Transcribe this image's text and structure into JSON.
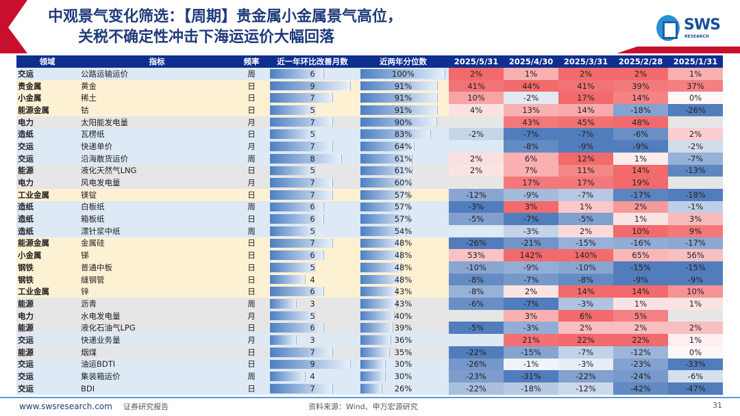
{
  "header": {
    "title_line1": "中观景气变化筛选：【周期】贵金属小金属景气高位，",
    "title_line2": "关税不确定性冲击下海运运价大幅回落",
    "logo_text": "SWS",
    "logo_sub": "RESEARCH"
  },
  "colors": {
    "header_bg": "#0e2f8f",
    "accent_red": "#c8102e",
    "row_blue": "#dde9f5",
    "row_yellow": "#fdf1d4",
    "row_gray": "#e6e6e6",
    "heat_pos": "#f0595b",
    "heat_neg": "#3f6fb5"
  },
  "table": {
    "columns": [
      "领域",
      "指标",
      "频率",
      "近一年环比改善月数",
      "近两年分位数",
      "2025/5/31",
      "2025/4/30",
      "2025/3/31",
      "2025/2/28",
      "2025/1/31"
    ],
    "rows": [
      {
        "domain": "交运",
        "indicator": "公路运输运价",
        "freq": "周",
        "months": 6,
        "pct": "100%",
        "group": "blue",
        "vals": [
          "2%",
          "1%",
          "2%",
          "2%",
          "1%"
        ]
      },
      {
        "domain": "贵金属",
        "indicator": "黄金",
        "freq": "日",
        "months": 9,
        "pct": "91%",
        "group": "yellow",
        "vals": [
          "41%",
          "44%",
          "41%",
          "39%",
          "37%"
        ]
      },
      {
        "domain": "小金属",
        "indicator": "稀土",
        "freq": "日",
        "months": 7,
        "pct": "91%",
        "group": "yellow",
        "vals": [
          "10%",
          "-2%",
          "17%",
          "14%",
          "0%"
        ]
      },
      {
        "domain": "能源金属",
        "indicator": "钴",
        "freq": "日",
        "months": 5,
        "pct": "91%",
        "group": "yellow",
        "vals": [
          "4%",
          "13%",
          "14%",
          "-18%",
          "-26%"
        ]
      },
      {
        "domain": "电力",
        "indicator": "太阳能发电量",
        "freq": "月",
        "months": 7,
        "pct": "90%",
        "group": "gray",
        "vals": [
          "",
          "43%",
          "45%",
          "48%",
          ""
        ]
      },
      {
        "domain": "造纸",
        "indicator": "瓦楞纸",
        "freq": "日",
        "months": 5,
        "pct": "83%",
        "group": "blue",
        "vals": [
          "-2%",
          "-7%",
          "-7%",
          "-6%",
          "2%"
        ]
      },
      {
        "domain": "交运",
        "indicator": "快递单价",
        "freq": "月",
        "months": 7,
        "pct": "64%",
        "group": "blue",
        "vals": [
          "",
          "-8%",
          "-9%",
          "-9%",
          "-2%"
        ]
      },
      {
        "domain": "交运",
        "indicator": "沿海散货运价",
        "freq": "周",
        "months": 8,
        "pct": "61%",
        "group": "blue",
        "vals": [
          "2%",
          "6%",
          "12%",
          "1%",
          "-7%"
        ]
      },
      {
        "domain": "能源",
        "indicator": "液化天然气LNG",
        "freq": "日",
        "months": 5,
        "pct": "61%",
        "group": "gray",
        "vals": [
          "2%",
          "7%",
          "11%",
          "14%",
          "-13%"
        ]
      },
      {
        "domain": "电力",
        "indicator": "风电发电量",
        "freq": "月",
        "months": 7,
        "pct": "60%",
        "group": "gray",
        "vals": [
          "",
          "17%",
          "17%",
          "19%",
          ""
        ]
      },
      {
        "domain": "工业金属",
        "indicator": "镁锭",
        "freq": "日",
        "months": 7,
        "pct": "57%",
        "group": "yellow",
        "vals": [
          "-12%",
          "-9%",
          "-7%",
          "-17%",
          "-18%"
        ]
      },
      {
        "domain": "造纸",
        "indicator": "白板纸",
        "freq": "周",
        "months": 6,
        "pct": "57%",
        "group": "blue",
        "vals": [
          "-3%",
          "3%",
          "1%",
          "2%",
          "-1%"
        ]
      },
      {
        "domain": "造纸",
        "indicator": "箱板纸",
        "freq": "日",
        "months": 6,
        "pct": "57%",
        "group": "blue",
        "vals": [
          "-5%",
          "-7%",
          "-5%",
          "1%",
          "3%"
        ]
      },
      {
        "domain": "造纸",
        "indicator": "漂针浆中纸",
        "freq": "周",
        "months": 5,
        "pct": "54%",
        "group": "blue",
        "vals": [
          "",
          "-3%",
          "2%",
          "10%",
          "9%"
        ]
      },
      {
        "domain": "能源金属",
        "indicator": "金属硅",
        "freq": "日",
        "months": 7,
        "pct": "48%",
        "group": "yellow",
        "vals": [
          "-26%",
          "-21%",
          "-15%",
          "-16%",
          "-17%"
        ]
      },
      {
        "domain": "小金属",
        "indicator": "锑",
        "freq": "日",
        "months": 6,
        "pct": "48%",
        "group": "yellow",
        "vals": [
          "53%",
          "142%",
          "140%",
          "65%",
          "56%"
        ]
      },
      {
        "domain": "钢铁",
        "indicator": "普通中板",
        "freq": "日",
        "months": 5,
        "pct": "48%",
        "group": "yellow",
        "vals": [
          "-10%",
          "-9%",
          "-10%",
          "-15%",
          "-15%"
        ]
      },
      {
        "domain": "钢铁",
        "indicator": "缝钢管",
        "freq": "日",
        "months": 4,
        "pct": "48%",
        "group": "yellow",
        "vals": [
          "-8%",
          "-7%",
          "-8%",
          "-9%",
          "-9%"
        ]
      },
      {
        "domain": "工业金属",
        "indicator": "锌",
        "freq": "日",
        "months": 6,
        "pct": "43%",
        "group": "yellow",
        "vals": [
          "-8%",
          "2%",
          "14%",
          "14%",
          "10%"
        ]
      },
      {
        "domain": "能源",
        "indicator": "沥青",
        "freq": "周",
        "months": 3,
        "pct": "43%",
        "group": "gray",
        "vals": [
          "-6%",
          "-7%",
          "-3%",
          "1%",
          "1%"
        ]
      },
      {
        "domain": "电力",
        "indicator": "水电发电量",
        "freq": "月",
        "months": 5,
        "pct": "40%",
        "group": "gray",
        "vals": [
          "",
          "3%",
          "6%",
          "5%",
          ""
        ]
      },
      {
        "domain": "能源",
        "indicator": "液化石油气LPG",
        "freq": "日",
        "months": 6,
        "pct": "39%",
        "group": "gray",
        "vals": [
          "-5%",
          "-3%",
          "2%",
          "2%",
          "2%"
        ]
      },
      {
        "domain": "交运",
        "indicator": "快递业务量",
        "freq": "月",
        "months": 3,
        "pct": "36%",
        "group": "blue",
        "vals": [
          "",
          "21%",
          "22%",
          "22%",
          "1%"
        ]
      },
      {
        "domain": "能源",
        "indicator": "烟煤",
        "freq": "日",
        "months": 7,
        "pct": "35%",
        "group": "gray",
        "vals": [
          "-22%",
          "-15%",
          "-7%",
          "-12%",
          "0%"
        ]
      },
      {
        "domain": "交运",
        "indicator": "油运BDTI",
        "freq": "日",
        "months": 9,
        "pct": "30%",
        "group": "blue",
        "vals": [
          "-26%",
          "-1%",
          "-3%",
          "-23%",
          "-33%"
        ]
      },
      {
        "domain": "交运",
        "indicator": "集装箱运价",
        "freq": "周",
        "months": 4,
        "pct": "30%",
        "group": "blue",
        "vals": [
          "-23%",
          "-31%",
          "-22%",
          "-24%",
          "-6%"
        ]
      },
      {
        "domain": "交运",
        "indicator": "BDI",
        "freq": "日",
        "months": 7,
        "pct": "26%",
        "group": "blue",
        "vals": [
          "-22%",
          "-18%",
          "-12%",
          "-42%",
          "-47%"
        ]
      }
    ]
  },
  "footer": {
    "url": "www.swsresearch.com",
    "report": "证券研究报告",
    "source": "资料来源：Wind、申万宏源研究",
    "page": "31"
  }
}
